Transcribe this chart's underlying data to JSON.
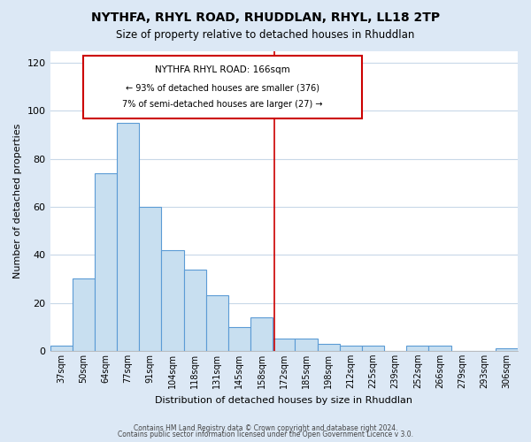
{
  "title": "NYTHFA, RHYL ROAD, RHUDDLAN, RHYL, LL18 2TP",
  "subtitle": "Size of property relative to detached houses in Rhuddlan",
  "xlabel": "Distribution of detached houses by size in Rhuddlan",
  "ylabel": "Number of detached properties",
  "bar_color": "#c8dff0",
  "bar_edge_color": "#5b9bd5",
  "categories": [
    "37sqm",
    "50sqm",
    "64sqm",
    "77sqm",
    "91sqm",
    "104sqm",
    "118sqm",
    "131sqm",
    "145sqm",
    "158sqm",
    "172sqm",
    "185sqm",
    "198sqm",
    "212sqm",
    "225sqm",
    "239sqm",
    "252sqm",
    "266sqm",
    "279sqm",
    "293sqm",
    "306sqm"
  ],
  "values": [
    2,
    30,
    74,
    95,
    60,
    42,
    34,
    23,
    10,
    14,
    5,
    5,
    3,
    2,
    2,
    0,
    2,
    2,
    0,
    0,
    1
  ],
  "ylim": [
    0,
    125
  ],
  "yticks": [
    0,
    20,
    40,
    60,
    80,
    100,
    120
  ],
  "annotation_title": "NYTHFA RHYL ROAD: 166sqm",
  "annotation_line1": "← 93% of detached houses are smaller (376)",
  "annotation_line2": "7% of semi-detached houses are larger (27) →",
  "annotation_box_color": "#ffffff",
  "annotation_box_edge": "#cc0000",
  "vline_color": "#cc0000",
  "footer1": "Contains HM Land Registry data © Crown copyright and database right 2024.",
  "footer2": "Contains public sector information licensed under the Open Government Licence v 3.0.",
  "fig_bg_color": "#dce8f5",
  "plot_bg_color": "#ffffff",
  "grid_color": "#c8d8e8"
}
